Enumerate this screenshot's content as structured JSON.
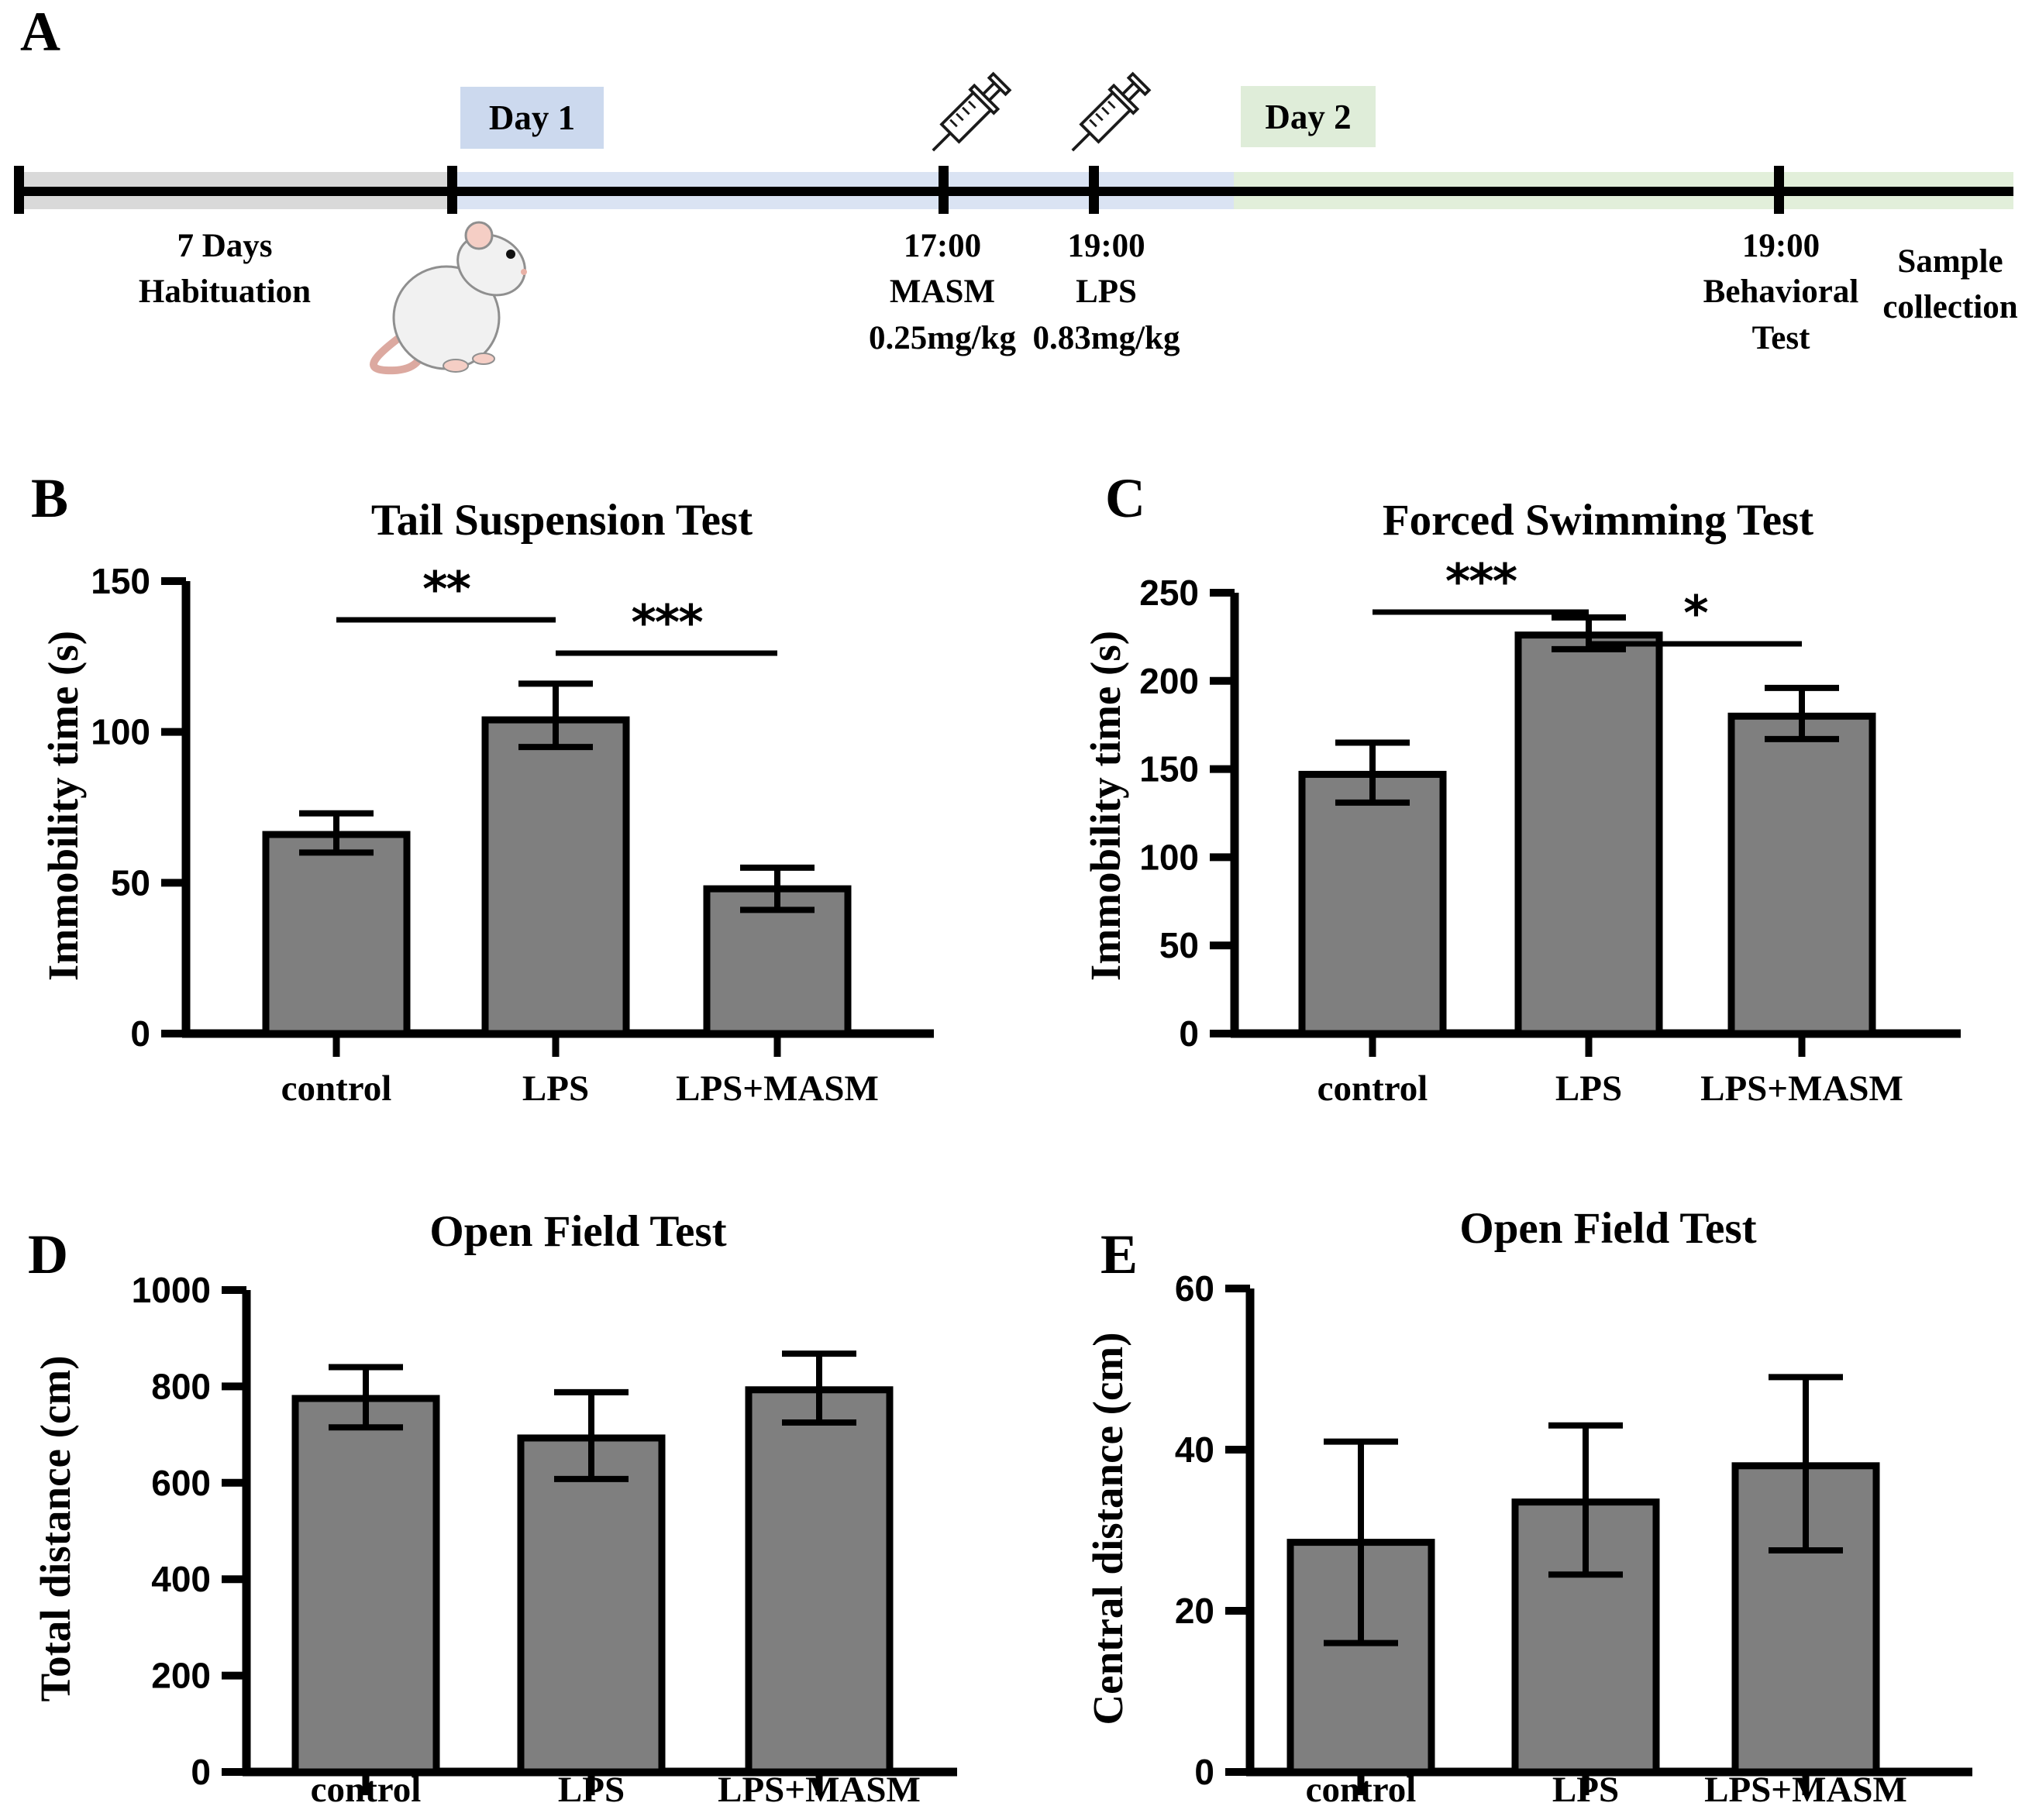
{
  "colors": {
    "bar_fill": "#7f7f7f",
    "axis": "#000000",
    "habituation_band": "#d9d9d9",
    "day1_band": "#dae3f3",
    "day1_box": "#ccd9ee",
    "day2_band": "#e2efda",
    "day2_box": "#dfedd9"
  },
  "panel_a": {
    "letter": "A",
    "habituation": {
      "line1": "7 Days",
      "line2": "Habituation"
    },
    "day1_label": "Day 1",
    "day2_label": "Day 2",
    "masm_injection": {
      "time": "17:00",
      "label": "MASM",
      "dose": "0.25mg/kg"
    },
    "lps_injection": {
      "time": "19:00",
      "label": "LPS",
      "dose": "0.83mg/kg"
    },
    "behavioral_test": {
      "time": "19:00",
      "line2": "Behavioral",
      "line3": "Test"
    },
    "sample_collection": {
      "line1": "Sample",
      "line2": "collection"
    }
  },
  "chart_data": [
    {
      "panel": "B",
      "type": "bar",
      "title": "Tail Suspension Test",
      "xlabel": "",
      "ylabel": "Immobility time (s)",
      "ylim": [
        0,
        150
      ],
      "yticks": [
        0,
        50,
        100,
        150
      ],
      "categories": [
        "control",
        "LPS",
        "LPS+MASM"
      ],
      "values": [
        66,
        104,
        48
      ],
      "error_low": [
        60,
        95,
        41
      ],
      "error_high": [
        73,
        116,
        55
      ],
      "significance": [
        {
          "from": "control",
          "to": "LPS",
          "label": "**"
        },
        {
          "from": "LPS",
          "to": "LPS+MASM",
          "label": "***"
        }
      ],
      "grid": false
    },
    {
      "panel": "C",
      "type": "bar",
      "title": "Forced Swimming Test",
      "xlabel": "",
      "ylabel": "Immobility time (s)",
      "ylim": [
        0,
        250
      ],
      "yticks": [
        0,
        50,
        100,
        150,
        200,
        250
      ],
      "categories": [
        "control",
        "LPS",
        "LPS+MASM"
      ],
      "values": [
        147,
        226,
        180
      ],
      "error_low": [
        131,
        218,
        167
      ],
      "error_high": [
        165,
        236,
        196
      ],
      "significance": [
        {
          "from": "control",
          "to": "LPS",
          "label": "***"
        },
        {
          "from": "LPS",
          "to": "LPS+MASM",
          "label": "*"
        }
      ],
      "grid": false
    },
    {
      "panel": "D",
      "type": "bar",
      "title": "Open Field Test",
      "xlabel": "",
      "ylabel": "Total distance (cm)",
      "ylim": [
        0,
        1000
      ],
      "yticks": [
        0,
        200,
        400,
        600,
        800,
        1000
      ],
      "categories": [
        "control",
        "LPS",
        "LPS+MASM"
      ],
      "values": [
        775,
        693,
        793
      ],
      "error_low": [
        715,
        608,
        725
      ],
      "error_high": [
        840,
        788,
        868
      ],
      "significance": [],
      "grid": false
    },
    {
      "panel": "E",
      "type": "bar",
      "title": "Open Field Test",
      "xlabel": "",
      "ylabel": "Central distance (cm)",
      "ylim": [
        0,
        60
      ],
      "yticks": [
        0,
        20,
        40,
        60
      ],
      "categories": [
        "control",
        "LPS",
        "LPS+MASM"
      ],
      "values": [
        28.5,
        33.5,
        38
      ],
      "error_low": [
        16,
        24.5,
        27.5
      ],
      "error_high": [
        41,
        43,
        49
      ],
      "significance": [],
      "grid": false
    }
  ]
}
